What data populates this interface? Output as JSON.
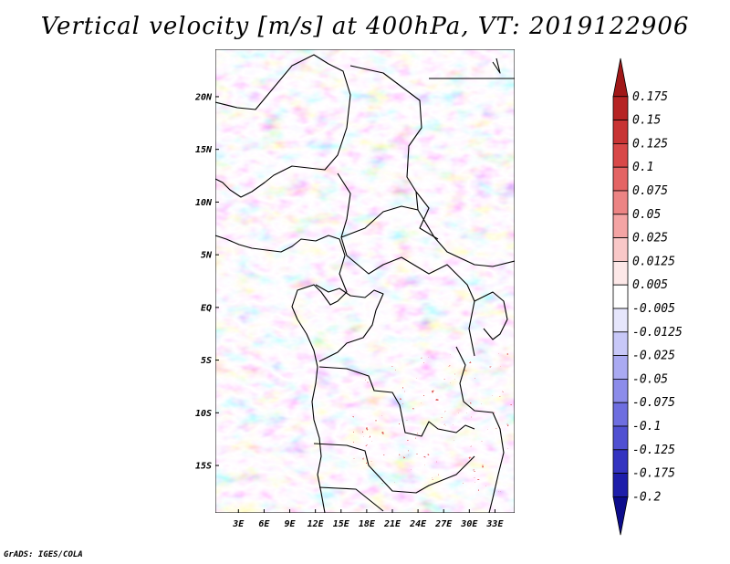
{
  "title": "Vertical velocity [m/s] at 400hPa, VT: 2019122906",
  "credit": "GrADS: IGES/COLA",
  "map": {
    "lat_labels": [
      "20N",
      "15N",
      "10N",
      "5N",
      "EQ",
      "5S",
      "10S",
      "15S"
    ],
    "lon_labels": [
      "3E",
      "6E",
      "9E",
      "12E",
      "15E",
      "18E",
      "21E",
      "24E",
      "27E",
      "30E",
      "33E"
    ],
    "lat_values": [
      20,
      15,
      10,
      5,
      0,
      -5,
      -10,
      -15
    ],
    "lon_values": [
      3,
      6,
      9,
      12,
      15,
      18,
      21,
      24,
      27,
      30,
      33
    ],
    "lat_range": [
      -19.5,
      24.5
    ],
    "lon_range": [
      0.3,
      35.3
    ]
  },
  "colorbar": {
    "labels": [
      "0.175",
      "0.15",
      "0.125",
      "0.1",
      "0.075",
      "0.05",
      "0.025",
      "0.0125",
      "0.005",
      "-0.005",
      "-0.0125",
      "-0.025",
      "-0.05",
      "-0.075",
      "-0.1",
      "-0.125",
      "-0.175",
      "-0.2"
    ],
    "colors": [
      "#a01818",
      "#b62424",
      "#c83434",
      "#d84848",
      "#e46464",
      "#ec8484",
      "#f4a4a4",
      "#f9c8c8",
      "#fde8e8",
      "#ffffff",
      "#e6e6fc",
      "#c8c8f8",
      "#aaaaf2",
      "#8c8cea",
      "#6e6ee0",
      "#5050d2",
      "#3434c0",
      "#1e1eaa",
      "#0c0c8c"
    ]
  }
}
